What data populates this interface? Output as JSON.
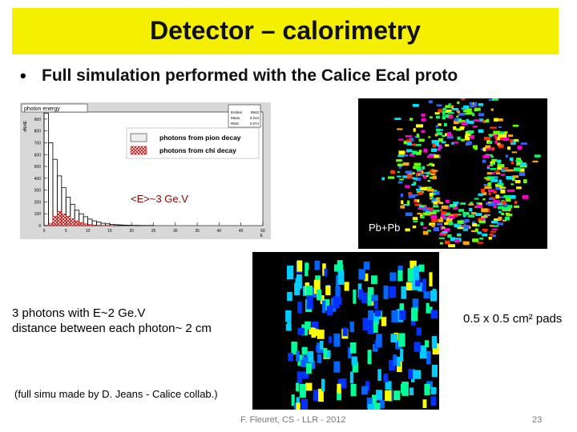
{
  "title": "Detector – calorimetry",
  "bullet": "Full simulation performed with the Calice Ecal proto",
  "histogram": {
    "type": "histogram",
    "title": "photon energy",
    "ylabel": "dN/dE",
    "xlabel": "E",
    "stats": [
      {
        "name": "Entries",
        "value": "8942"
      },
      {
        "name": "Mean",
        "value": "3.014"
      },
      {
        "name": "RMS",
        "value": "2.974"
      }
    ],
    "bins": [
      0,
      1,
      2,
      3,
      4,
      5,
      6,
      7,
      8,
      9,
      10,
      11,
      12,
      13,
      14,
      15,
      16,
      17,
      18,
      19,
      20,
      21,
      22,
      23,
      24,
      25
    ],
    "series": [
      {
        "name": "photons from pion decay",
        "color": "#000000",
        "values": [
          950,
          700,
          560,
          420,
          320,
          240,
          180,
          130,
          100,
          75,
          55,
          40,
          30,
          20,
          15,
          10,
          8,
          6,
          4,
          3,
          2,
          2,
          1,
          1,
          1
        ]
      },
      {
        "name": "photons from chi decay",
        "color": "#cc0000",
        "values": [
          0,
          20,
          80,
          120,
          100,
          80,
          60,
          40,
          25,
          15,
          10,
          5,
          3,
          2,
          1,
          1,
          0,
          0,
          0,
          0,
          0,
          0,
          0,
          0,
          0
        ]
      }
    ],
    "xlim": [
      0,
      50
    ],
    "xticks": [
      0,
      5,
      10,
      15,
      20,
      25,
      30,
      35,
      40,
      45,
      50
    ],
    "ylim": [
      0,
      960
    ],
    "yticks": [
      0,
      100,
      200,
      300,
      400,
      500,
      600,
      700,
      800,
      900
    ],
    "annotation": "<E>~3 Ge.V"
  },
  "display1_label": "Pb+Pb",
  "caption_left": [
    "3 photons with E~2 Ge.V",
    "distance between each photon~ 2 cm"
  ],
  "caption_right": "0.5 x 0.5 cm² pads",
  "credit": "(full simu made by D. Jeans -  Calice collab.)",
  "footer": "F. Fleuret, CS - LLR - 2012",
  "page_number": "23"
}
